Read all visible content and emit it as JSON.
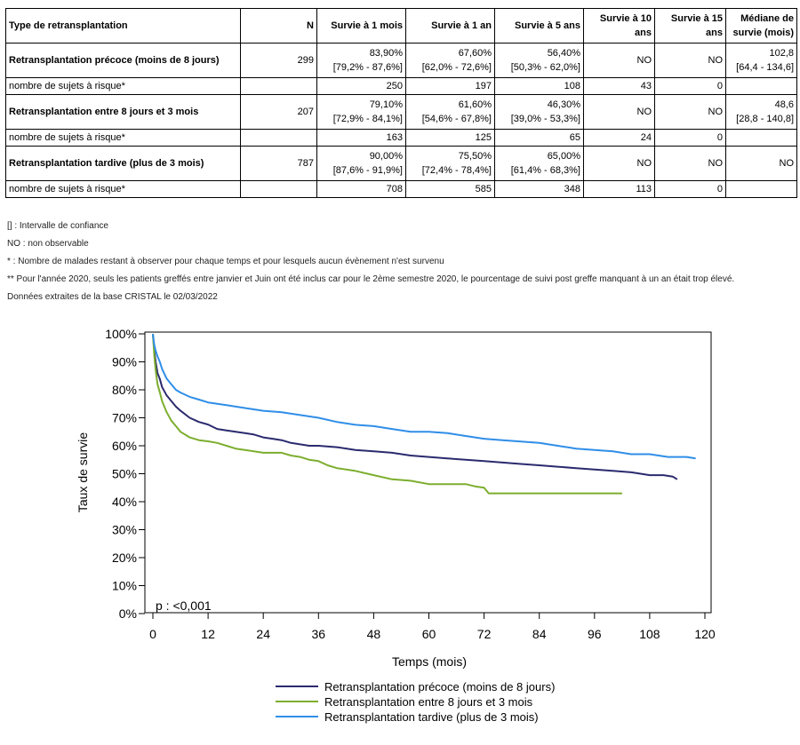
{
  "table": {
    "headers": [
      "Type de retransplantation",
      "N",
      "Survie à 1 mois",
      "Survie à 1 an",
      "Survie à 5 ans",
      "Survie à 10 ans",
      "Survie à 15 ans",
      "Médiane de survie (mois)"
    ],
    "groups": [
      {
        "label": "Retransplantation précoce (moins de 8 jours)",
        "n": "299",
        "m1": [
          "83,90%",
          "[79,2% - 87,6%]"
        ],
        "y1": [
          "67,60%",
          "[62,0% - 72,6%]"
        ],
        "y5": [
          "56,40%",
          "[50,3% - 62,0%]"
        ],
        "y10": "NO",
        "y15": "NO",
        "median": [
          "102,8",
          "[64,4 - 134,6]"
        ],
        "risk_label": "nombre de sujets à risque*",
        "risk": [
          "250",
          "197",
          "108",
          "43",
          "0"
        ]
      },
      {
        "label": "Retransplantation entre 8 jours et 3 mois",
        "n": "207",
        "m1": [
          "79,10%",
          "[72,9% - 84,1%]"
        ],
        "y1": [
          "61,60%",
          "[54,6% - 67,8%]"
        ],
        "y5": [
          "46,30%",
          "[39,0% - 53,3%]"
        ],
        "y10": "NO",
        "y15": "NO",
        "median": [
          "48,6",
          "[28,8 - 140,8]"
        ],
        "risk_label": "nombre de sujets à risque*",
        "risk": [
          "163",
          "125",
          "65",
          "24",
          "0"
        ]
      },
      {
        "label": "Retransplantation tardive (plus de 3 mois)",
        "n": "787",
        "m1": [
          "90,00%",
          "[87,6% - 91,9%]"
        ],
        "y1": [
          "75,50%",
          "[72,4% - 78,4%]"
        ],
        "y5": [
          "65,00%",
          "[61,4% - 68,3%]"
        ],
        "y10": "NO",
        "y15": "NO",
        "median": [
          "NO",
          ""
        ],
        "risk_label": "nombre de sujets à risque*",
        "risk": [
          "708",
          "585",
          "348",
          "113",
          "0"
        ]
      }
    ]
  },
  "notes": [
    "[] : Intervalle de confiance",
    "NO : non observable",
    "* : Nombre de malades restant à observer pour chaque temps et pour lesquels aucun évènement n'est survenu",
    "** Pour l'année 2020, seuls les patients greffés entre janvier et Juin ont été inclus car pour le 2ème semestre 2020, le pourcentage de suivi post greffe manquant à un an était trop élevé.",
    "Données extraites de la base CRISTAL le 02/03/2022"
  ],
  "chart_data": {
    "type": "line",
    "title": "",
    "xlabel": "Temps (mois)",
    "ylabel": "Taux de survie",
    "xlim": [
      0,
      120
    ],
    "ylim": [
      0,
      100
    ],
    "xticks": [
      0,
      12,
      24,
      36,
      48,
      60,
      72,
      84,
      96,
      108,
      120
    ],
    "yticks": [
      0,
      10,
      20,
      30,
      40,
      50,
      60,
      70,
      80,
      90,
      100
    ],
    "ytick_labels": [
      "0%",
      "10%",
      "20%",
      "30%",
      "40%",
      "50%",
      "60%",
      "70%",
      "80%",
      "90%",
      "100%"
    ],
    "annotation": "p : <0,001",
    "legend_position": "bottom",
    "series": [
      {
        "name": "Retransplantation précoce (moins de 8 jours)",
        "color": "#2b2a6e",
        "x": [
          0,
          0.3,
          0.6,
          1,
          1.5,
          2,
          3,
          4,
          5,
          6,
          8,
          10,
          12,
          14,
          16,
          18,
          20,
          22,
          24,
          26,
          28,
          30,
          32,
          34,
          36,
          40,
          44,
          48,
          52,
          56,
          60,
          64,
          68,
          72,
          76,
          80,
          84,
          88,
          92,
          96,
          100,
          104,
          108,
          111,
          113,
          114
        ],
        "y": [
          100,
          94,
          90,
          86,
          83.9,
          81,
          78,
          76,
          74,
          72.5,
          70,
          68.5,
          67.6,
          66,
          65.5,
          65,
          64.5,
          64,
          63,
          62.5,
          62,
          61,
          60.5,
          60,
          60,
          59.5,
          58.5,
          58,
          57.5,
          56.5,
          56,
          55.5,
          55,
          54.5,
          54,
          53.5,
          53,
          52.5,
          52,
          51.5,
          51,
          50.5,
          49.5,
          49.5,
          49,
          48
        ]
      },
      {
        "name": "Retransplantation entre 8 jours et 3 mois",
        "color": "#7cae2e",
        "x": [
          0,
          0.3,
          0.6,
          1,
          1.5,
          2,
          3,
          4,
          5,
          6,
          7,
          8,
          10,
          12,
          14,
          16,
          18,
          20,
          24,
          28,
          30,
          32,
          34,
          36,
          38,
          40,
          44,
          48,
          52,
          56,
          60,
          64,
          68,
          70,
          72,
          73,
          80,
          90,
          100,
          102
        ],
        "y": [
          100,
          92,
          87,
          82,
          79.1,
          76,
          72,
          69,
          67,
          65,
          64,
          63,
          62,
          61.6,
          61,
          60,
          59,
          58.5,
          57.5,
          57.5,
          56.5,
          56,
          55,
          54.5,
          53,
          52,
          51,
          49.5,
          48,
          47.5,
          46.3,
          46.3,
          46.3,
          45.5,
          45,
          43,
          43,
          43,
          43,
          43
        ]
      },
      {
        "name": "Retransplantation tardive (plus de 3 mois)",
        "color": "#2f8ee8",
        "x": [
          0,
          0.3,
          0.6,
          1,
          1.5,
          2,
          3,
          4,
          5,
          6,
          8,
          10,
          12,
          16,
          20,
          24,
          28,
          32,
          36,
          40,
          44,
          48,
          52,
          56,
          60,
          64,
          68,
          72,
          76,
          80,
          84,
          88,
          92,
          96,
          100,
          104,
          108,
          112,
          116,
          118
        ],
        "y": [
          100,
          96,
          94,
          92,
          90,
          87.5,
          84,
          82,
          80,
          79,
          77.5,
          76.5,
          75.5,
          74.5,
          73.5,
          72.5,
          72,
          71,
          70,
          68.5,
          67.5,
          67,
          66,
          65,
          65,
          64.5,
          63.5,
          62.5,
          62,
          61.5,
          61,
          60,
          59,
          58.5,
          58,
          57,
          57,
          56,
          56,
          55.5
        ]
      }
    ]
  }
}
